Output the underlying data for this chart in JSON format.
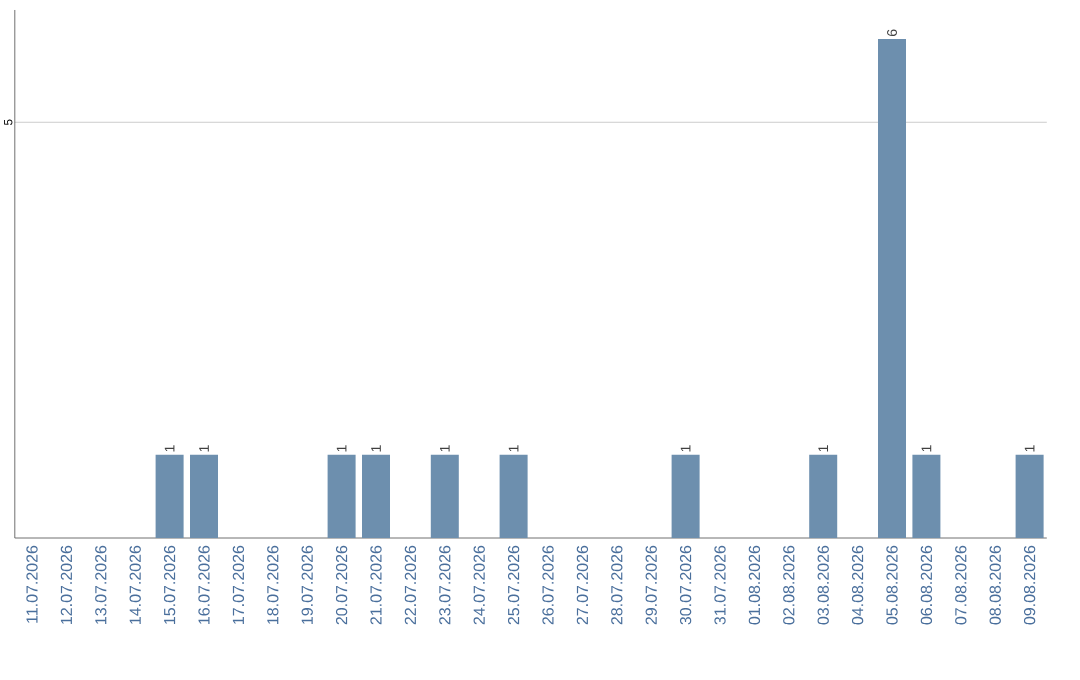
{
  "chart_data": {
    "type": "bar",
    "categories": [
      "11.07.2026",
      "12.07.2026",
      "13.07.2026",
      "14.07.2026",
      "15.07.2026",
      "16.07.2026",
      "17.07.2026",
      "18.07.2026",
      "19.07.2026",
      "20.07.2026",
      "21.07.2026",
      "22.07.2026",
      "23.07.2026",
      "24.07.2026",
      "25.07.2026",
      "26.07.2026",
      "27.07.2026",
      "28.07.2026",
      "29.07.2026",
      "30.07.2026",
      "31.07.2026",
      "01.08.2026",
      "02.08.2026",
      "03.08.2026",
      "04.08.2026",
      "05.08.2026",
      "06.08.2026",
      "07.08.2026",
      "08.08.2026",
      "09.08.2026"
    ],
    "values": [
      0,
      0,
      0,
      0,
      1,
      1,
      0,
      0,
      0,
      1,
      1,
      0,
      1,
      0,
      1,
      0,
      0,
      0,
      0,
      1,
      0,
      0,
      0,
      1,
      0,
      6,
      1,
      0,
      0,
      1
    ],
    "value_labels": [
      null,
      null,
      null,
      null,
      "1",
      "1",
      null,
      null,
      null,
      "1",
      "1",
      null,
      "1",
      null,
      "1",
      null,
      null,
      null,
      null,
      "1",
      null,
      null,
      null,
      "1",
      null,
      "6",
      "1",
      null,
      null,
      "1"
    ],
    "color": "#6d8fae",
    "ylim": [
      0,
      6.35
    ],
    "yticks": [
      5
    ],
    "grid": "y"
  }
}
